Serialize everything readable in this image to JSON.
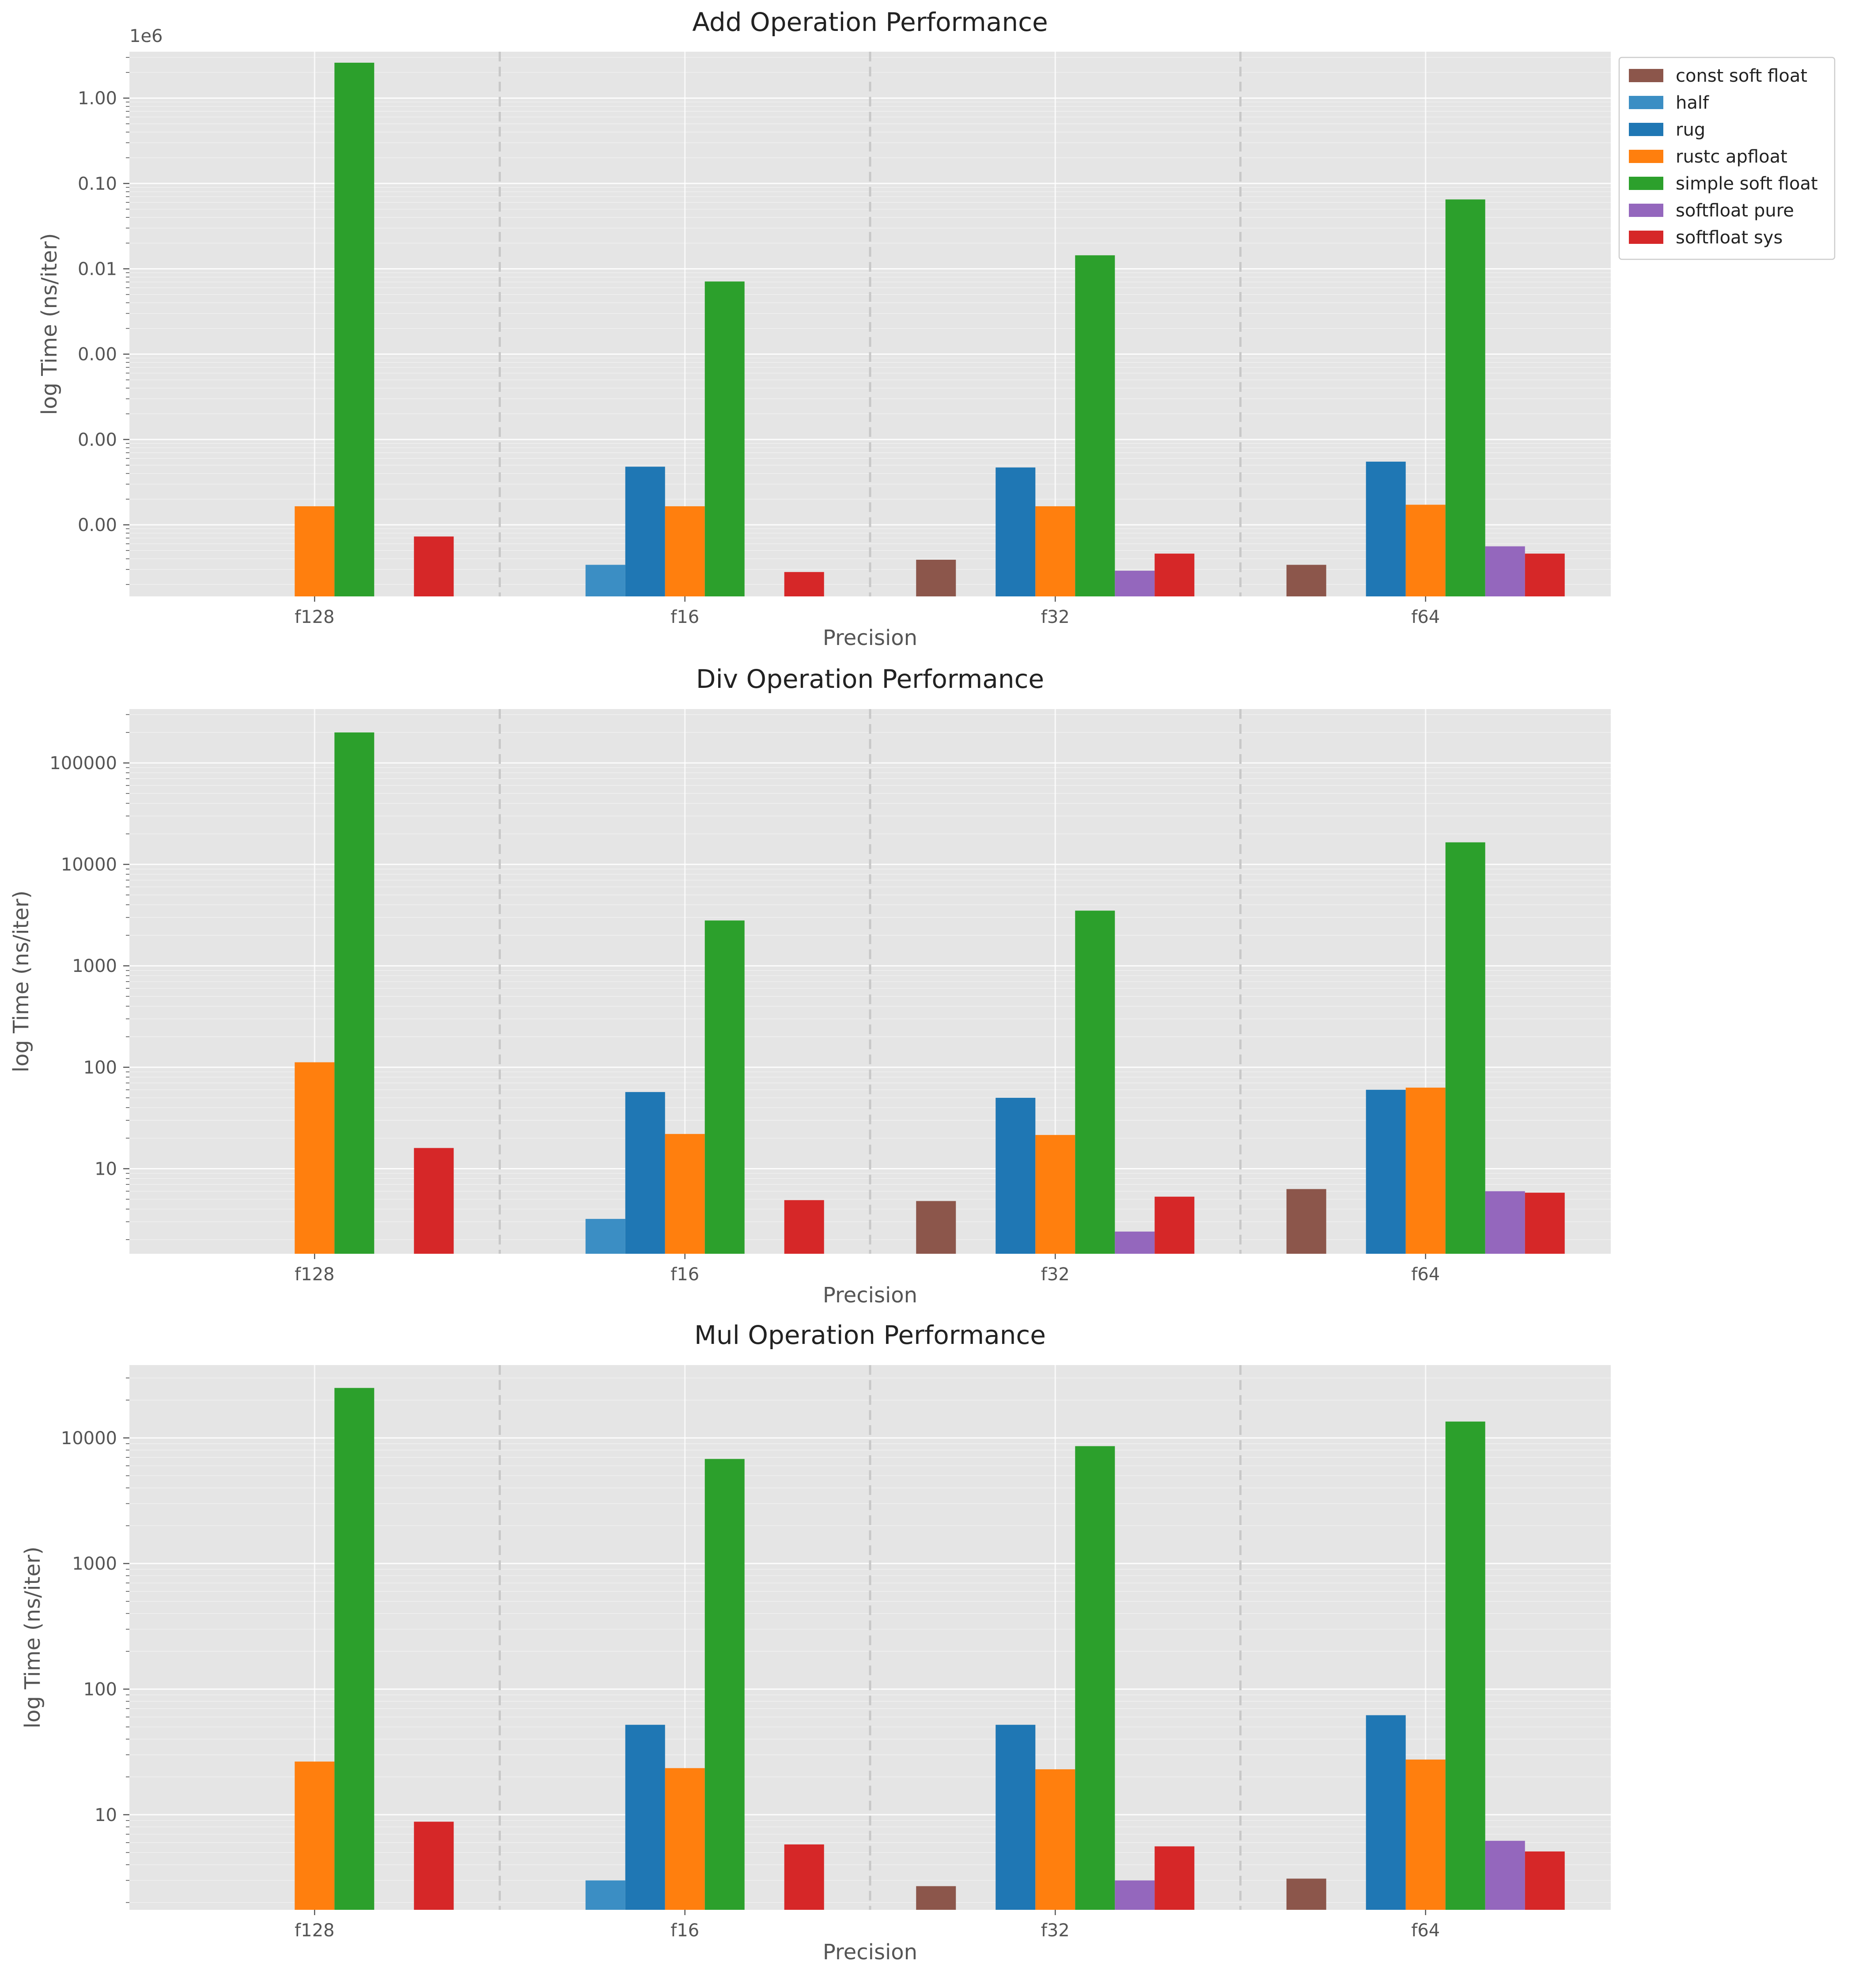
{
  "colors": {
    "const soft float": "#8c564b",
    "half": "#3b8ec4",
    "rug": "#1f77b4",
    "rustc apfloat": "#ff7f0e",
    "simple soft float": "#2ca02c",
    "softfloat pure": "#9467bd",
    "softfloat sys": "#d62728",
    "plot_bg": "#e5e5e5",
    "grid": "#ffffff",
    "separator": "#c8c8c8"
  },
  "legend": [
    "const soft float",
    "half",
    "rug",
    "rustc apfloat",
    "simple soft float",
    "softfloat pure",
    "softfloat sys"
  ],
  "chart_data": [
    {
      "type": "bar",
      "title": "Add Operation Performance",
      "xlabel": "Precision",
      "ylabel": "log Time (ns/iter)",
      "scale": "log",
      "offset_text": "1e6",
      "ylim": [
        1.45e-06,
        3.5
      ],
      "yticks": [
        {
          "value": 1e-05,
          "label": "0.00"
        },
        {
          "value": 0.0001,
          "label": "0.00"
        },
        {
          "value": 0.001,
          "label": "0.00"
        },
        {
          "value": 0.01,
          "label": "0.01"
        },
        {
          "value": 0.1,
          "label": "0.10"
        },
        {
          "value": 1.0,
          "label": "1.00"
        }
      ],
      "categories": [
        "f128",
        "f16",
        "f32",
        "f64"
      ],
      "series": [
        {
          "name": "const soft float",
          "values": [
            null,
            null,
            3.9e-06,
            3.4e-06
          ]
        },
        {
          "name": "half",
          "values": [
            null,
            3.4e-06,
            null,
            null
          ]
        },
        {
          "name": "rug",
          "values": [
            null,
            4.8e-05,
            4.7e-05,
            5.5e-05
          ]
        },
        {
          "name": "rustc apfloat",
          "values": [
            1.65e-05,
            1.65e-05,
            1.65e-05,
            1.72e-05
          ]
        },
        {
          "name": "simple soft float",
          "values": [
            2.6,
            0.0071,
            0.0144,
            0.065
          ]
        },
        {
          "name": "softfloat pure",
          "values": [
            null,
            null,
            2.9e-06,
            5.6e-06
          ]
        },
        {
          "name": "softfloat sys",
          "values": [
            7.3e-06,
            2.8e-06,
            null,
            4.6e-06
          ]
        }
      ],
      "series_extra_note": "",
      "sys_f32": 4.6e-06
    },
    {
      "type": "bar",
      "title": "Div Operation Performance",
      "xlabel": "Precision",
      "ylabel": "log Time (ns/iter)",
      "scale": "log",
      "offset_text": "",
      "ylim": [
        1.45,
        340000
      ],
      "yticks": [
        {
          "value": 10,
          "label": "10"
        },
        {
          "value": 100,
          "label": "100"
        },
        {
          "value": 1000,
          "label": "1000"
        },
        {
          "value": 10000,
          "label": "10000"
        },
        {
          "value": 100000,
          "label": "100000"
        }
      ],
      "categories": [
        "f128",
        "f16",
        "f32",
        "f64"
      ],
      "series": [
        {
          "name": "const soft float",
          "values": [
            null,
            null,
            4.8,
            6.3
          ]
        },
        {
          "name": "half",
          "values": [
            null,
            3.2,
            null,
            null
          ]
        },
        {
          "name": "rug",
          "values": [
            null,
            57,
            50,
            60
          ]
        },
        {
          "name": "rustc apfloat",
          "values": [
            112,
            22,
            21.5,
            63
          ]
        },
        {
          "name": "simple soft float",
          "values": [
            200000,
            2800,
            3500,
            16500
          ]
        },
        {
          "name": "softfloat pure",
          "values": [
            null,
            null,
            2.4,
            6.0
          ]
        },
        {
          "name": "softfloat sys",
          "values": [
            16,
            4.9,
            5.3,
            5.8
          ]
        }
      ]
    },
    {
      "type": "bar",
      "title": "Mul Operation Performance",
      "xlabel": "Precision",
      "ylabel": "log Time (ns/iter)",
      "scale": "log",
      "offset_text": "",
      "ylim": [
        1.75,
        38000
      ],
      "yticks": [
        {
          "value": 10,
          "label": "10"
        },
        {
          "value": 100,
          "label": "100"
        },
        {
          "value": 1000,
          "label": "1000"
        },
        {
          "value": 10000,
          "label": "10000"
        }
      ],
      "categories": [
        "f128",
        "f16",
        "f32",
        "f64"
      ],
      "series": [
        {
          "name": "const soft float",
          "values": [
            null,
            null,
            2.7,
            3.1
          ]
        },
        {
          "name": "half",
          "values": [
            null,
            3.0,
            null,
            null
          ]
        },
        {
          "name": "rug",
          "values": [
            null,
            52,
            52,
            62
          ]
        },
        {
          "name": "rustc apfloat",
          "values": [
            26.5,
            23.5,
            23,
            27.5
          ]
        },
        {
          "name": "simple soft float",
          "values": [
            25000,
            6800,
            8600,
            13500
          ]
        },
        {
          "name": "softfloat pure",
          "values": [
            null,
            null,
            3.0,
            6.2
          ]
        },
        {
          "name": "softfloat sys",
          "values": [
            8.8,
            5.8,
            5.6,
            5.1
          ]
        }
      ]
    }
  ]
}
